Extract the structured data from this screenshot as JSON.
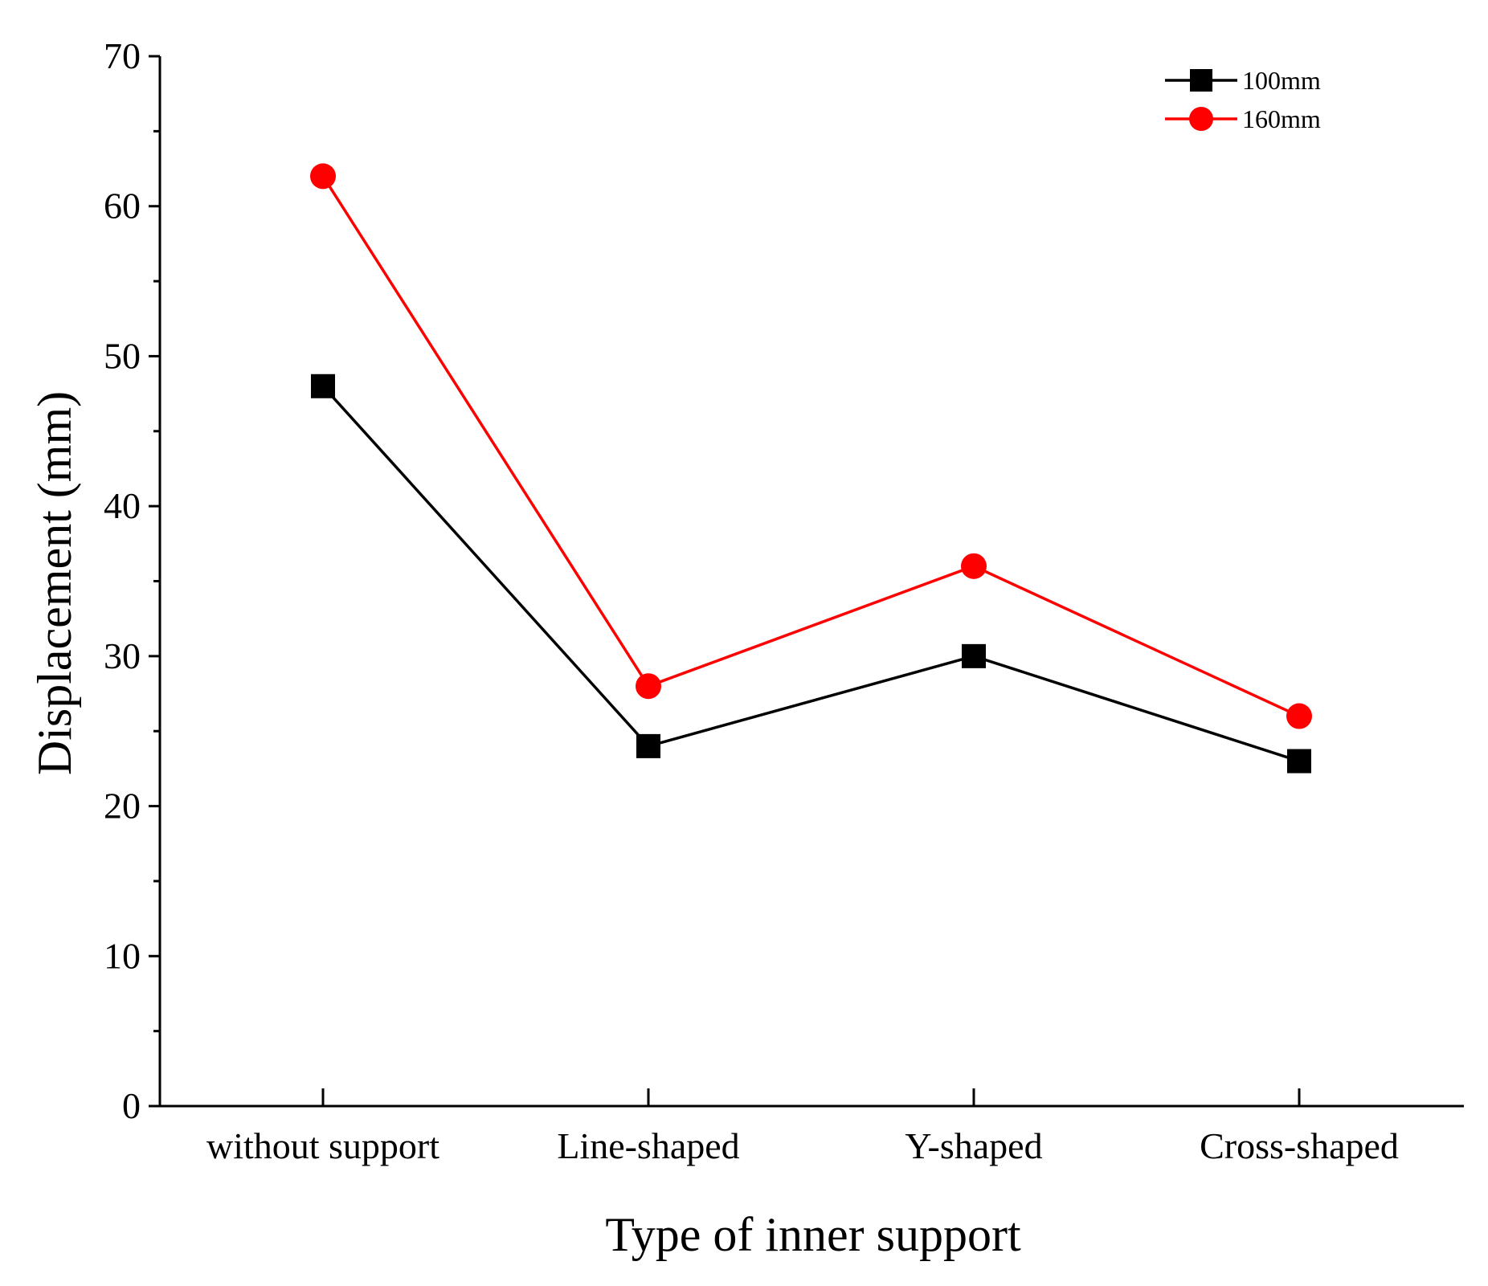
{
  "chart_data": {
    "type": "line",
    "title": "",
    "xlabel": "Type of inner support",
    "ylabel": "Displacement (mm)",
    "categories": [
      "without support",
      "Line-shaped",
      "Y-shaped",
      "Cross-shaped"
    ],
    "ylim": [
      0,
      70
    ],
    "yticks": [
      0,
      10,
      20,
      30,
      40,
      50,
      60,
      70
    ],
    "grid": false,
    "legend_position": "top-right",
    "series": [
      {
        "name": "100mm",
        "color": "#000000",
        "marker": "square",
        "values": [
          48,
          24,
          30,
          23
        ]
      },
      {
        "name": "160mm",
        "color": "#ff0000",
        "marker": "circle",
        "values": [
          62,
          28,
          36,
          26
        ]
      }
    ]
  }
}
